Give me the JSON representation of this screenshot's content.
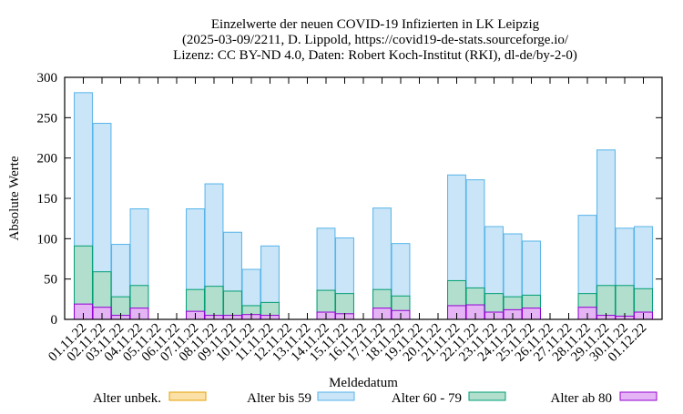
{
  "chart_data": {
    "type": "bar",
    "stacking": "overlay",
    "title": [
      "Einzelwerte der neuen COVID-19 Infizierten in LK Leipzig",
      "(2025-03-09/2211, D. Lippold, https://covid19-de-stats.sourceforge.io/",
      "Lizenz: CC BY-ND 4.0, Daten: Robert Koch-Institut (RKI), dl-de/by-2-0)"
    ],
    "xlabel": "Meldedatum",
    "ylabel": "Absolute Werte",
    "ylim": [
      0,
      300
    ],
    "yticks": [
      0,
      50,
      100,
      150,
      200,
      250,
      300
    ],
    "grid": false,
    "legend_position": "bottom",
    "categories": [
      "01.11.22",
      "02.11.22",
      "03.11.22",
      "04.11.22",
      "05.11.22",
      "06.11.22",
      "07.11.22",
      "08.11.22",
      "09.11.22",
      "10.11.22",
      "11.11.22",
      "12.11.22",
      "13.11.22",
      "14.11.22",
      "15.11.22",
      "16.11.22",
      "17.11.22",
      "18.11.22",
      "19.11.22",
      "20.11.22",
      "21.11.22",
      "22.11.22",
      "23.11.22",
      "24.11.22",
      "25.11.22",
      "26.11.22",
      "27.11.22",
      "28.11.22",
      "29.11.22",
      "30.11.22",
      "01.12.22"
    ],
    "series": [
      {
        "name": "Alter unbek.",
        "fill": "#fbe0a8",
        "stroke": "#e69f00",
        "values": [
          0,
          0,
          0,
          0,
          0,
          0,
          0,
          0,
          0,
          0,
          0,
          0,
          0,
          0,
          0,
          0,
          0,
          0,
          0,
          0,
          0,
          0,
          0,
          0,
          0,
          0,
          0,
          0,
          0,
          0,
          0
        ]
      },
      {
        "name": "Alter bis 59",
        "fill": "#c9e5f7",
        "stroke": "#56b4e9",
        "values": [
          281,
          243,
          93,
          137,
          0,
          0,
          137,
          168,
          108,
          62,
          91,
          0,
          0,
          113,
          101,
          0,
          138,
          94,
          0,
          0,
          179,
          173,
          115,
          106,
          97,
          0,
          0,
          129,
          210,
          113,
          115
        ]
      },
      {
        "name": "Alter 60 - 79",
        "fill": "#b2dfcd",
        "stroke": "#009e73",
        "values": [
          91,
          59,
          28,
          42,
          0,
          0,
          37,
          41,
          35,
          17,
          21,
          0,
          0,
          36,
          32,
          0,
          37,
          29,
          0,
          0,
          48,
          39,
          32,
          28,
          30,
          0,
          0,
          32,
          42,
          42,
          38
        ]
      },
      {
        "name": "Alter ab 80",
        "fill": "#e4b4f4",
        "stroke": "#9400d3",
        "values": [
          19,
          15,
          5,
          14,
          0,
          0,
          10,
          5,
          5,
          6,
          5,
          0,
          0,
          9,
          7,
          0,
          14,
          11,
          0,
          0,
          17,
          18,
          9,
          12,
          14,
          0,
          0,
          15,
          5,
          4,
          9
        ]
      }
    ]
  }
}
